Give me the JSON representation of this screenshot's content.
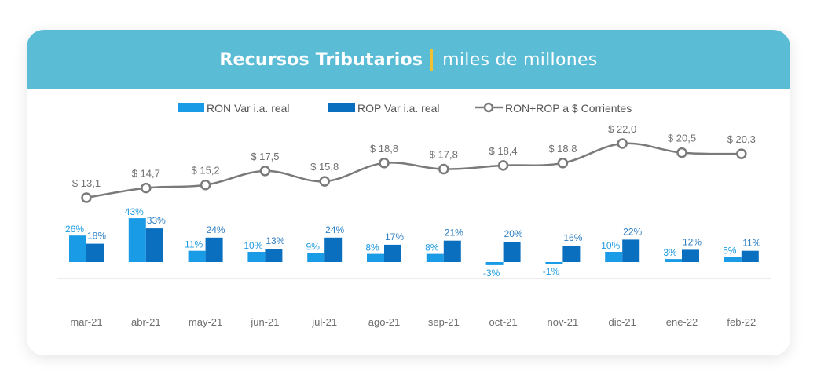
{
  "header": {
    "title": "Recursos Tributarios",
    "subtitle": "miles de millones"
  },
  "colors": {
    "header_bg": "#5bbcd6",
    "separator": "#f2c230",
    "ron": "#1a9be6",
    "rop": "#0a6fbf",
    "line": "#7a7a7a"
  },
  "chart_data": {
    "type": "bar",
    "title": "Recursos Tributarios | miles de millones",
    "xlabel": "",
    "ylabel": "",
    "grid": false,
    "legend_position": "top",
    "categories": [
      "mar-21",
      "abr-21",
      "may-21",
      "jun-21",
      "jul-21",
      "ago-21",
      "sep-21",
      "oct-21",
      "nov-21",
      "dic-21",
      "ene-22",
      "feb-22"
    ],
    "series": [
      {
        "name": "RON Var i.a. real",
        "kind": "bar",
        "axis": "percent",
        "values": [
          26,
          43,
          11,
          10,
          9,
          8,
          8,
          -3,
          -1,
          10,
          3,
          5
        ],
        "labels": [
          "26%",
          "43%",
          "11%",
          "10%",
          "9%",
          "8%",
          "8%",
          "-3%",
          "-1%",
          "10%",
          "3%",
          "5%"
        ]
      },
      {
        "name": "ROP Var i.a. real",
        "kind": "bar",
        "axis": "percent",
        "values": [
          18,
          33,
          24,
          13,
          24,
          17,
          21,
          20,
          16,
          22,
          12,
          11
        ],
        "labels": [
          "18%",
          "33%",
          "24%",
          "13%",
          "24%",
          "17%",
          "21%",
          "20%",
          "16%",
          "22%",
          "12%",
          "11%"
        ]
      },
      {
        "name": "RON+ROP a $ Corrientes",
        "kind": "line",
        "axis": "amount",
        "values": [
          13.1,
          14.7,
          15.2,
          17.5,
          15.8,
          18.8,
          17.8,
          18.4,
          18.8,
          22.0,
          20.5,
          20.3
        ],
        "labels": [
          "$ 13,1",
          "$ 14,7",
          "$ 15,2",
          "$ 17,5",
          "$ 15,8",
          "$ 18,8",
          "$ 17,8",
          "$ 18,4",
          "$ 18,8",
          "$ 22,0",
          "$ 20,5",
          "$ 20,3"
        ]
      }
    ]
  }
}
